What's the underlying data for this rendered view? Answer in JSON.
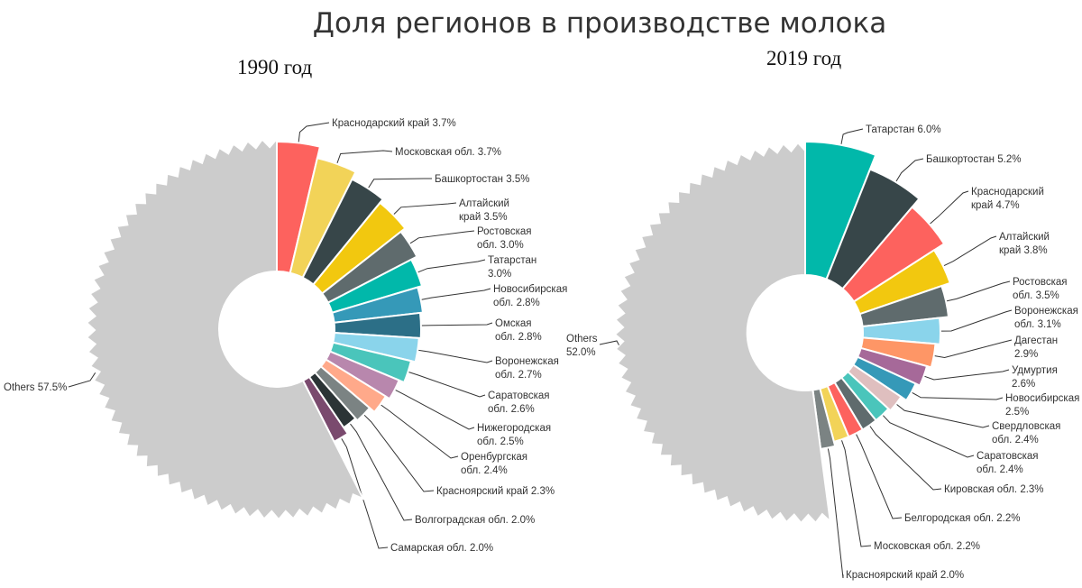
{
  "page": {
    "title": "Доля регионов в производстве молока"
  },
  "colors": {
    "others": "#cccccc",
    "red": "#fd625e",
    "lightyellow": "#f2d358",
    "darkslate": "#374649",
    "gold": "#f2c80f",
    "gray": "#5f6b6d",
    "teal": "#01b8aa",
    "blue": "#3599b8",
    "darkblue": "#2c6f87",
    "lightblue": "#8ad4eb",
    "aqua": "#4ac5bb",
    "mauve": "#b887ad",
    "peach": "#fe9666",
    "lightpeach": "#ffa98a",
    "purple": "#a66999",
    "pink": "#dfbfbf",
    "plum": "#7a4a6e",
    "darkgray": "#2b3436"
  },
  "chart_data": [
    {
      "type": "pie",
      "title": "1990 год",
      "slices": [
        {
          "label": "Краснодарский край",
          "value": 3.7,
          "display": "3.7%",
          "color": "#fd625e"
        },
        {
          "label": "Московская обл.",
          "value": 3.7,
          "display": "3.7%",
          "color": "#f2d358"
        },
        {
          "label": "Башкортостан",
          "value": 3.5,
          "display": "3.5%",
          "color": "#374649"
        },
        {
          "label": "Алтайский край",
          "value": 3.5,
          "display": "3.5%",
          "color": "#f2c80f"
        },
        {
          "label": "Ростовская обл.",
          "value": 3.0,
          "display": "3.0%",
          "color": "#5f6b6d"
        },
        {
          "label": "Татарстан",
          "value": 3.0,
          "display": "3.0%",
          "color": "#01b8aa"
        },
        {
          "label": "Новосибирская обл.",
          "value": 2.8,
          "display": "2.8%",
          "color": "#3599b8"
        },
        {
          "label": "Омская обл.",
          "value": 2.8,
          "display": "2.8%",
          "color": "#2c6f87"
        },
        {
          "label": "Воронежская обл.",
          "value": 2.7,
          "display": "2.7%",
          "color": "#8ad4eb"
        },
        {
          "label": "Саратовская обл.",
          "value": 2.6,
          "display": "2.6%",
          "color": "#4ac5bb"
        },
        {
          "label": "Нижегородская обл.",
          "value": 2.5,
          "display": "2.5%",
          "color": "#b887ad"
        },
        {
          "label": "Оренбургская обл.",
          "value": 2.4,
          "display": "2.4%",
          "color": "#ffa98a"
        },
        {
          "label": "Красноярский край",
          "value": 2.3,
          "display": "2.3%",
          "color": "#7b8383"
        },
        {
          "label": "Волгоградская обл.",
          "value": 2.0,
          "display": "2.0%",
          "color": "#2b3436"
        },
        {
          "label": "Самарская обл.",
          "value": 2.0,
          "display": "2.0%",
          "color": "#7a4a6e"
        },
        {
          "label": "Others",
          "value": 57.5,
          "display": "57.5%",
          "color": "#cccccc"
        }
      ]
    },
    {
      "type": "pie",
      "title": "2019 год",
      "slices": [
        {
          "label": "Татарстан",
          "value": 6.0,
          "display": "6.0%",
          "color": "#01b8aa"
        },
        {
          "label": "Башкортостан",
          "value": 5.2,
          "display": "5.2%",
          "color": "#374649"
        },
        {
          "label": "Краснодарский край",
          "value": 4.7,
          "display": "4.7%",
          "color": "#fd625e"
        },
        {
          "label": "Алтайский край",
          "value": 3.8,
          "display": "3.8%",
          "color": "#f2c80f"
        },
        {
          "label": "Ростовская обл.",
          "value": 3.5,
          "display": "3.5%",
          "color": "#5f6b6d"
        },
        {
          "label": "Воронежская обл.",
          "value": 3.1,
          "display": "3.1%",
          "color": "#8ad4eb"
        },
        {
          "label": "Дагестан",
          "value": 2.9,
          "display": "2.9%",
          "color": "#fe9666"
        },
        {
          "label": "Удмуртия",
          "value": 2.6,
          "display": "2.6%",
          "color": "#a66999"
        },
        {
          "label": "Новосибирская",
          "value": 2.5,
          "display": "2.5%",
          "color": "#3599b8"
        },
        {
          "label": "Свердловская обл.",
          "value": 2.4,
          "display": "2.4%",
          "color": "#dfbfbf"
        },
        {
          "label": "Саратовская обл.",
          "value": 2.4,
          "display": "2.4%",
          "color": "#4ac5bb"
        },
        {
          "label": "Кировская обл.",
          "value": 2.3,
          "display": "2.3%",
          "color": "#5f6b6d"
        },
        {
          "label": "Белгородская обл.",
          "value": 2.2,
          "display": "2.2%",
          "color": "#fd625e"
        },
        {
          "label": "Московская обл.",
          "value": 2.2,
          "display": "2.2%",
          "color": "#f2d358"
        },
        {
          "label": "Красноярский край",
          "value": 2.0,
          "display": "2.0%",
          "color": "#7b8383"
        },
        {
          "label": "Others",
          "value": 52.0,
          "display": "52.0%",
          "color": "#cccccc"
        }
      ]
    }
  ]
}
